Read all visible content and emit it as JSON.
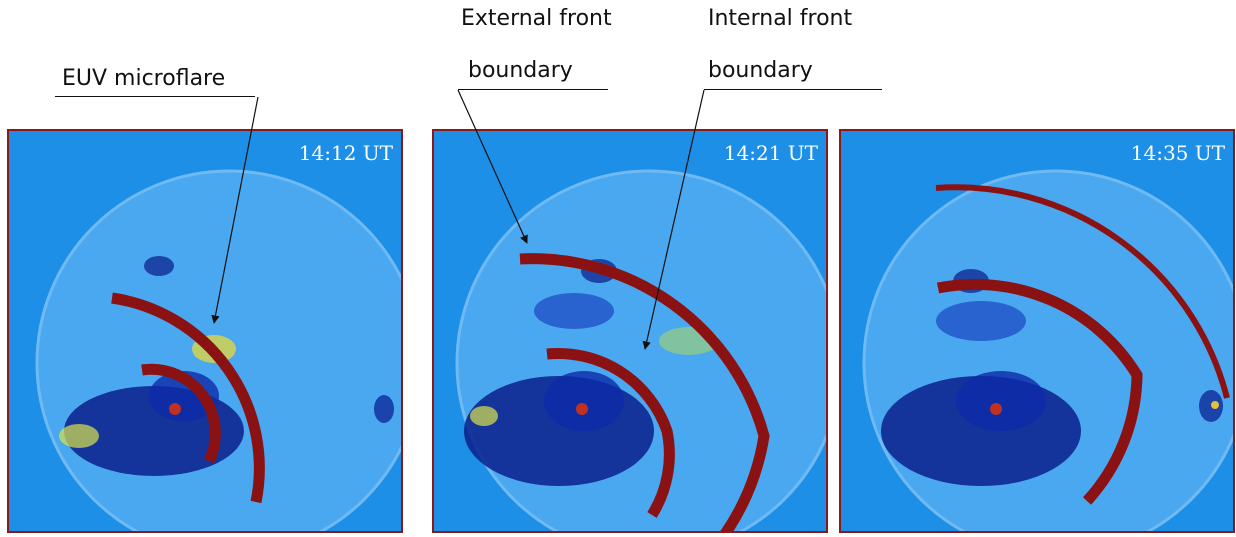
{
  "annotations": {
    "microflare": "EUV microflare",
    "external_line1": "External front",
    "external_line2": "boundary",
    "internal_line1": "Internal front",
    "internal_line2": "boundary"
  },
  "panels": [
    {
      "time": "14:12 UT"
    },
    {
      "time": "14:21 UT"
    },
    {
      "time": "14:35 UT"
    }
  ],
  "colors": {
    "background": "#1e8fe6",
    "disk": "#4aa8f0",
    "dark_region": "#0a1f8c",
    "front": "#8b1212",
    "border": "#8a1a1a"
  }
}
